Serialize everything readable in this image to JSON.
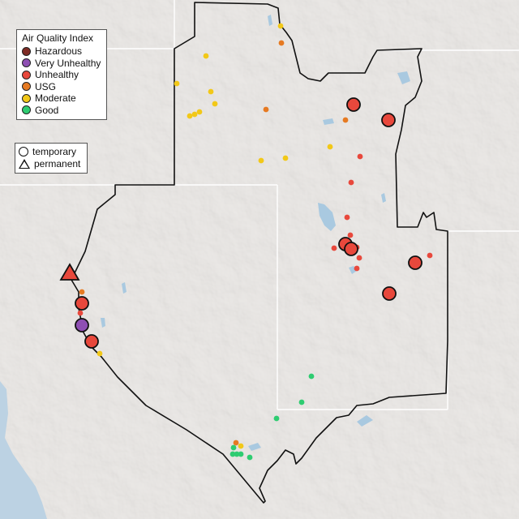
{
  "legend": {
    "title": "Air Quality Index",
    "categories": [
      {
        "label": "Hazardous",
        "color": "#7e2b24"
      },
      {
        "label": "Very Unhealthy",
        "color": "#8e4fb3"
      },
      {
        "label": "Unhealthy",
        "color": "#e8483c"
      },
      {
        "label": "USG",
        "color": "#e67a22"
      },
      {
        "label": "Moderate",
        "color": "#f2c818"
      },
      {
        "label": "Good",
        "color": "#2ecc71"
      }
    ]
  },
  "monitor_types": {
    "temporary": "temporary",
    "permanent": "permanent"
  },
  "colors": {
    "land": "#e6e3e0",
    "ocean": "#bcd2e3",
    "boundary": "#111111",
    "state_lines": "#ffffff",
    "water": "#a9c9e0"
  }
}
